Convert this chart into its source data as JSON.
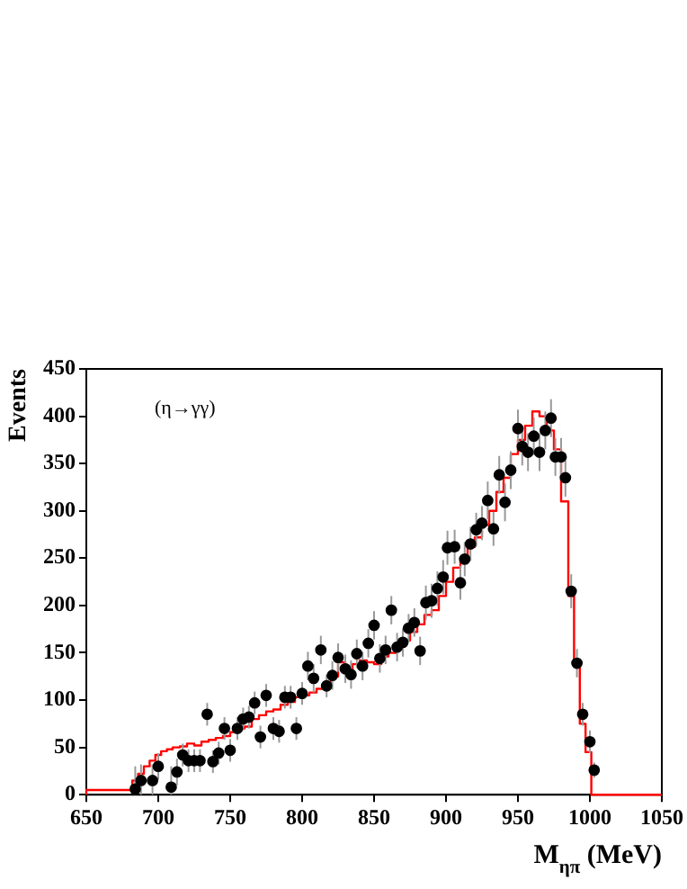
{
  "chart_data": {
    "type": "scatter",
    "xlabel": "M$_{ηπ}$ (MeV)",
    "ylabel": "Events",
    "annotations": [
      "(η→γγ)"
    ],
    "xlim": [
      650,
      1050
    ],
    "xticks": [
      650,
      700,
      750,
      800,
      850,
      900,
      950,
      1000,
      1050
    ],
    "ylim": [
      0,
      450
    ],
    "yticks": [
      0,
      50,
      100,
      150,
      200,
      250,
      300,
      350,
      400,
      450
    ],
    "grid": false,
    "legend": false,
    "series": [
      {
        "type": "scatter",
        "color": "#000000",
        "marker": "circle",
        "x": [
          684,
          688,
          696,
          700,
          709,
          713,
          717,
          721,
          725,
          729,
          734,
          738,
          742,
          746,
          750,
          755,
          759,
          763,
          767,
          771,
          775,
          780,
          784,
          788,
          792,
          796,
          800,
          804,
          808,
          813,
          817,
          821,
          825,
          830,
          834,
          838,
          842,
          846,
          850,
          854,
          858,
          862,
          866,
          870,
          874,
          878,
          882,
          886,
          890,
          894,
          898,
          901,
          906,
          910,
          913,
          917,
          921,
          925,
          929,
          933,
          937,
          941,
          945,
          950,
          953,
          957,
          961,
          965,
          969,
          973,
          976,
          980,
          983,
          987,
          991,
          995,
          1000,
          1003
        ],
        "values": [
          6,
          15,
          15,
          30,
          8,
          24,
          42,
          36,
          36,
          36,
          85,
          35,
          44,
          70,
          47,
          70,
          80,
          82,
          97,
          61,
          105,
          70,
          67,
          103,
          103,
          70,
          107,
          136,
          123,
          153,
          115,
          126,
          145,
          133,
          127,
          149,
          136,
          160,
          179,
          144,
          153,
          195,
          156,
          161,
          176,
          182,
          152,
          203,
          205,
          218,
          230,
          261,
          262,
          224,
          249,
          265,
          280,
          287,
          311,
          281,
          338,
          309,
          343,
          387,
          368,
          362,
          379,
          362,
          385,
          398,
          357,
          357,
          335,
          215,
          139,
          85,
          56,
          26
        ],
        "errors": [
          [
            0,
            30
          ],
          [
            0,
            32
          ],
          [
            0,
            32
          ],
          [
            16,
            44
          ],
          [
            0,
            30
          ],
          [
            10,
            38
          ],
          12,
          12,
          12,
          12,
          12,
          12,
          12,
          12,
          12,
          12,
          12,
          12,
          12,
          12,
          12,
          12,
          12,
          12,
          12,
          12,
          12,
          15,
          15,
          15,
          12,
          15,
          15,
          15,
          15,
          15,
          15,
          15,
          15,
          15,
          15,
          15,
          15,
          15,
          15,
          15,
          15,
          18,
          18,
          18,
          18,
          18,
          18,
          18,
          18,
          18,
          18,
          18,
          20,
          18,
          20,
          20,
          20,
          20,
          20,
          20,
          20,
          20,
          20,
          20,
          20,
          20,
          20,
          18,
          15,
          12,
          12,
          8
        ]
      },
      {
        "type": "step",
        "color": "#ff0000",
        "marker": "none",
        "x": [
          650,
          682,
          686,
          690,
          694,
          698,
          702,
          706,
          710,
          715,
          720,
          725,
          730,
          735,
          740,
          745,
          750,
          755,
          760,
          765,
          770,
          775,
          780,
          785,
          790,
          795,
          800,
          805,
          810,
          815,
          820,
          825,
          830,
          835,
          840,
          845,
          850,
          855,
          860,
          865,
          870,
          875,
          880,
          885,
          890,
          895,
          900,
          905,
          910,
          915,
          920,
          925,
          930,
          935,
          940,
          945,
          950,
          955,
          960,
          965,
          970,
          975,
          980,
          985,
          989,
          993,
          997,
          1001,
          1005,
          1050
        ],
        "values": [
          0,
          5,
          15,
          22,
          30,
          36,
          42,
          46,
          48,
          50,
          51,
          54,
          52,
          56,
          58,
          60,
          62,
          66,
          70,
          72,
          80,
          84,
          88,
          90,
          95,
          98,
          103,
          105,
          108,
          112,
          118,
          125,
          140,
          132,
          138,
          142,
          140,
          138,
          146,
          150,
          160,
          163,
          172,
          180,
          190,
          195,
          210,
          225,
          240,
          250,
          262,
          272,
          285,
          300,
          320,
          335,
          360,
          375,
          390,
          405,
          400,
          385,
          365,
          310,
          210,
          140,
          75,
          45,
          0,
          0
        ]
      }
    ]
  }
}
